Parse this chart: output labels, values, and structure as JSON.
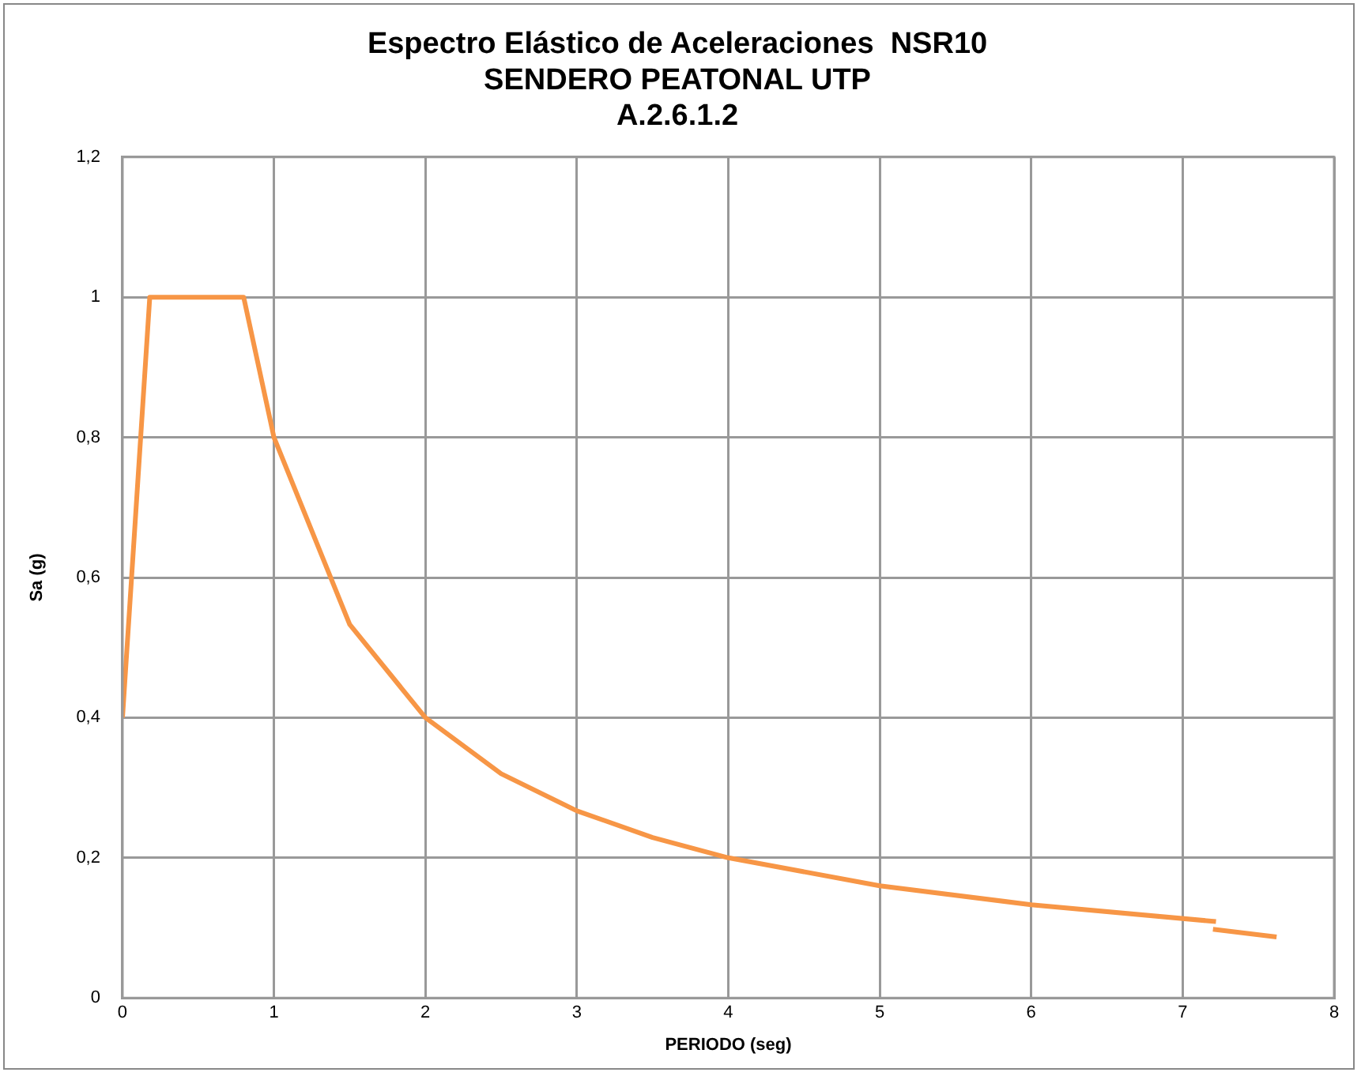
{
  "chart_data": {
    "type": "line",
    "title": [
      "Espectro Elástico de Aceleraciones  NSR10",
      "SENDERO PEATONAL UTP",
      "A.2.6.1.2"
    ],
    "xlabel": "PERIODO (seg)",
    "ylabel": "Sa (g)",
    "series": [
      {
        "color": "#f79646",
        "x": [
          0,
          0.18,
          0.8,
          1,
          1.5,
          2,
          2.5,
          3,
          3.5,
          4,
          5,
          6,
          7.22
        ],
        "values": [
          0.4,
          1,
          1,
          0.8,
          0.533,
          0.4,
          0.32,
          0.267,
          0.229,
          0.2,
          0.16,
          0.133,
          0.109
        ]
      },
      {
        "color": "#f79646",
        "x": [
          7.2,
          7.62
        ],
        "values": [
          0.098,
          0.087
        ]
      }
    ],
    "xlim": [
      0,
      8
    ],
    "xticks": [
      0,
      1,
      2,
      3,
      4,
      5,
      6,
      7,
      8
    ],
    "ylim": [
      0,
      1.2
    ],
    "yticks": [
      0,
      {
        "value": 0.2,
        "label": "0,2"
      },
      {
        "value": 0.4,
        "label": "0,4"
      },
      {
        "value": 0.6,
        "label": "0,6"
      },
      {
        "value": 0.8,
        "label": "0,8"
      },
      1,
      {
        "value": 1.2,
        "label": "1,2"
      }
    ],
    "grid": true,
    "legend": false,
    "marker": "none",
    "line_style": "solid"
  }
}
